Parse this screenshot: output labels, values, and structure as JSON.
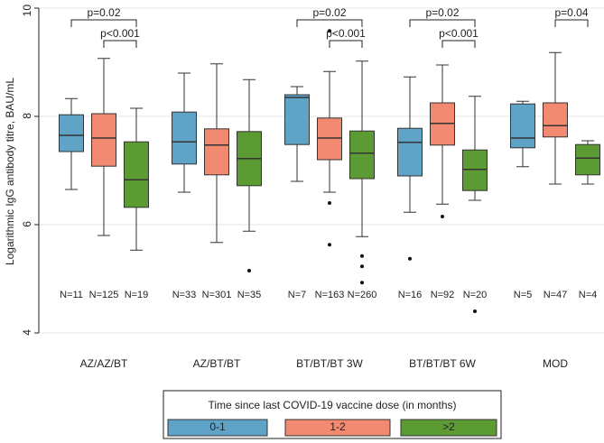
{
  "chart_data": {
    "type": "box",
    "y_label": "Logarithmic IgG antibody titre, BAU/mL",
    "ylim": [
      4,
      10
    ],
    "yticks": [
      4,
      6,
      8,
      10
    ],
    "grid": true,
    "categories": [
      "AZ/AZ/BT",
      "AZ/BT/BT",
      "BT/BT/BT 3W",
      "BT/BT/BT 6W",
      "MOD"
    ],
    "legend_title": "Time since last COVID-19 vaccine dose (in months)",
    "legend_position": "bottom",
    "series": [
      {
        "name": "0-1",
        "color": "#5fa3c6",
        "boxes": [
          {
            "min": 6.65,
            "q1": 7.35,
            "median": 7.65,
            "q3": 8.03,
            "max": 8.33,
            "outliers": []
          },
          {
            "min": 6.6,
            "q1": 7.12,
            "median": 7.53,
            "q3": 8.08,
            "max": 8.8,
            "outliers": []
          },
          {
            "min": 6.8,
            "q1": 7.48,
            "median": 8.35,
            "q3": 8.4,
            "max": 8.55,
            "outliers": []
          },
          {
            "min": 6.23,
            "q1": 6.9,
            "median": 7.52,
            "q3": 7.78,
            "max": 8.73,
            "outliers": [
              5.37
            ]
          },
          {
            "min": 7.07,
            "q1": 7.42,
            "median": 7.6,
            "q3": 8.23,
            "max": 8.28,
            "outliers": []
          }
        ],
        "n_labels": [
          "N=11",
          "N=33",
          "N=7",
          "N=16",
          "N=5"
        ]
      },
      {
        "name": "1-2",
        "color": "#f28a72",
        "boxes": [
          {
            "min": 5.8,
            "q1": 7.08,
            "median": 7.6,
            "q3": 8.05,
            "max": 9.07,
            "outliers": []
          },
          {
            "min": 5.67,
            "q1": 6.92,
            "median": 7.47,
            "q3": 7.77,
            "max": 8.97,
            "outliers": []
          },
          {
            "min": 6.6,
            "q1": 7.2,
            "median": 7.6,
            "q3": 7.97,
            "max": 8.83,
            "outliers": [
              9.58,
              6.4,
              5.63
            ]
          },
          {
            "min": 6.38,
            "q1": 7.47,
            "median": 7.87,
            "q3": 8.25,
            "max": 8.95,
            "outliers": [
              6.15
            ]
          },
          {
            "min": 6.75,
            "q1": 7.62,
            "median": 7.83,
            "q3": 8.25,
            "max": 9.18,
            "outliers": []
          }
        ],
        "n_labels": [
          "N=125",
          "N=301",
          "N=163",
          "N=92",
          "N=47"
        ]
      },
      {
        "name": ">2",
        "color": "#5c9a34",
        "boxes": [
          {
            "min": 5.53,
            "q1": 6.32,
            "median": 6.83,
            "q3": 7.53,
            "max": 8.15,
            "outliers": []
          },
          {
            "min": 5.88,
            "q1": 6.72,
            "median": 7.22,
            "q3": 7.72,
            "max": 8.68,
            "outliers": [
              5.15
            ]
          },
          {
            "min": 5.78,
            "q1": 6.85,
            "median": 7.32,
            "q3": 7.73,
            "max": 9.02,
            "outliers": [
              5.42,
              5.23,
              4.93
            ]
          },
          {
            "min": 6.45,
            "q1": 6.63,
            "median": 7.02,
            "q3": 7.38,
            "max": 8.37,
            "outliers": [
              4.4
            ]
          },
          {
            "min": 6.75,
            "q1": 6.92,
            "median": 7.23,
            "q3": 7.48,
            "max": 7.55,
            "outliers": []
          }
        ],
        "n_labels": [
          "N=19",
          "N=35",
          "N=260",
          "N=20",
          "N=4"
        ]
      }
    ],
    "comparisons": [
      {
        "category": 0,
        "from": 0,
        "to": 2,
        "label": "p=0.02"
      },
      {
        "category": 0,
        "from": 1,
        "to": 2,
        "label": "p<0.001"
      },
      {
        "category": 2,
        "from": 0,
        "to": 2,
        "label": "p=0.02"
      },
      {
        "category": 2,
        "from": 1,
        "to": 2,
        "label": "p<0.001"
      },
      {
        "category": 3,
        "from": 0,
        "to": 2,
        "label": "p=0.02"
      },
      {
        "category": 3,
        "from": 1,
        "to": 2,
        "label": "p<0.001"
      },
      {
        "category": 4,
        "from": 1,
        "to": 2,
        "label": "p=0.04"
      }
    ]
  }
}
